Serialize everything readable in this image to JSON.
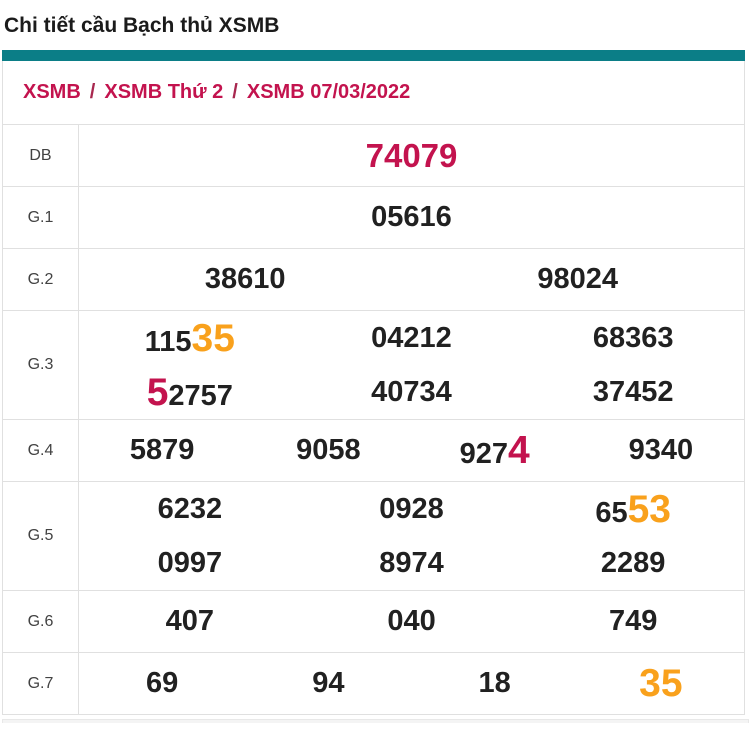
{
  "title": "Chi tiết cầu Bạch thủ XSMB",
  "breadcrumb": {
    "separator": "/",
    "items": [
      {
        "label": "XSMB"
      },
      {
        "label": "XSMB Thứ 2"
      },
      {
        "label": "XSMB 07/03/2022"
      }
    ]
  },
  "colors": {
    "teal": "#0b7e87",
    "crimson": "#c3134e",
    "orange": "#f9a11c",
    "text": "#212121",
    "border": "#e0e0e0"
  },
  "table": {
    "rows": [
      {
        "label": "DB",
        "lines": [
          [
            [
              {
                "text": "74079",
                "style": "db"
              }
            ]
          ]
        ]
      },
      {
        "label": "G.1",
        "lines": [
          [
            [
              {
                "text": "05616",
                "style": "normal"
              }
            ]
          ]
        ]
      },
      {
        "label": "G.2",
        "lines": [
          [
            [
              {
                "text": "38610",
                "style": "normal"
              }
            ],
            [
              {
                "text": "98024",
                "style": "normal"
              }
            ]
          ]
        ]
      },
      {
        "label": "G.3",
        "lines": [
          [
            [
              {
                "text": "115",
                "style": "normal"
              },
              {
                "text": "35",
                "style": "orange"
              }
            ],
            [
              {
                "text": "04212",
                "style": "normal"
              }
            ],
            [
              {
                "text": "68363",
                "style": "normal"
              }
            ]
          ],
          [
            [
              {
                "text": "5",
                "style": "crimson"
              },
              {
                "text": "2757",
                "style": "normal"
              }
            ],
            [
              {
                "text": "40734",
                "style": "normal"
              }
            ],
            [
              {
                "text": "37452",
                "style": "normal"
              }
            ]
          ]
        ]
      },
      {
        "label": "G.4",
        "lines": [
          [
            [
              {
                "text": "5879",
                "style": "normal"
              }
            ],
            [
              {
                "text": "9058",
                "style": "normal"
              }
            ],
            [
              {
                "text": "927",
                "style": "normal"
              },
              {
                "text": "4",
                "style": "crimson"
              }
            ],
            [
              {
                "text": "9340",
                "style": "normal"
              }
            ]
          ]
        ]
      },
      {
        "label": "G.5",
        "lines": [
          [
            [
              {
                "text": "6232",
                "style": "normal"
              }
            ],
            [
              {
                "text": "0928",
                "style": "normal"
              }
            ],
            [
              {
                "text": "65",
                "style": "normal"
              },
              {
                "text": "53",
                "style": "orange"
              }
            ]
          ],
          [
            [
              {
                "text": "0997",
                "style": "normal"
              }
            ],
            [
              {
                "text": "8974",
                "style": "normal"
              }
            ],
            [
              {
                "text": "2289",
                "style": "normal"
              }
            ]
          ]
        ]
      },
      {
        "label": "G.6",
        "lines": [
          [
            [
              {
                "text": "407",
                "style": "normal"
              }
            ],
            [
              {
                "text": "040",
                "style": "normal"
              }
            ],
            [
              {
                "text": "749",
                "style": "normal"
              }
            ]
          ]
        ]
      },
      {
        "label": "G.7",
        "lines": [
          [
            [
              {
                "text": "69",
                "style": "normal"
              }
            ],
            [
              {
                "text": "94",
                "style": "normal"
              }
            ],
            [
              {
                "text": "18",
                "style": "normal"
              }
            ],
            [
              {
                "text": "35",
                "style": "orange"
              }
            ]
          ]
        ]
      }
    ]
  }
}
